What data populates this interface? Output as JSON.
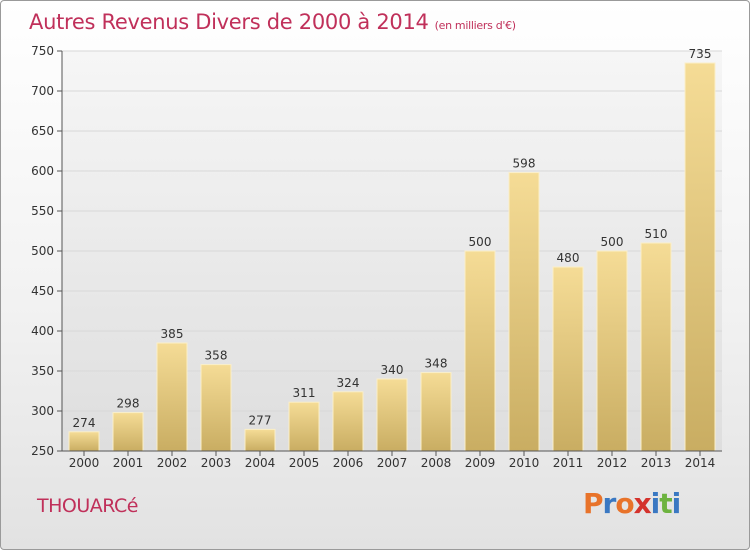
{
  "title": "Autres Revenus Divers de 2000 à 2014",
  "subtitle": "(en milliers d'€)",
  "commune": "THOUARCé",
  "logo": {
    "text": "Proxiti",
    "colors": [
      "#e8732a",
      "#3a78c2",
      "#e8732a",
      "#d4322c",
      "#3a78c2",
      "#6db33f",
      "#3a78c2"
    ]
  },
  "colors": {
    "bar_top": "#f5dc96",
    "bar_bottom": "#c9ad62",
    "title": "#c0305a",
    "grid": "#d8d8d8"
  },
  "chart_data": {
    "type": "bar",
    "categories": [
      "2000",
      "2001",
      "2002",
      "2003",
      "2004",
      "2005",
      "2006",
      "2007",
      "2008",
      "2009",
      "2010",
      "2011",
      "2012",
      "2013",
      "2014"
    ],
    "values": [
      274,
      298,
      385,
      358,
      277,
      311,
      324,
      340,
      348,
      500,
      598,
      480,
      500,
      510,
      735
    ],
    "ylim": [
      250,
      750
    ],
    "yticks": [
      250,
      300,
      350,
      400,
      450,
      500,
      550,
      600,
      650,
      700,
      750
    ],
    "grid": true,
    "legend": "none"
  }
}
